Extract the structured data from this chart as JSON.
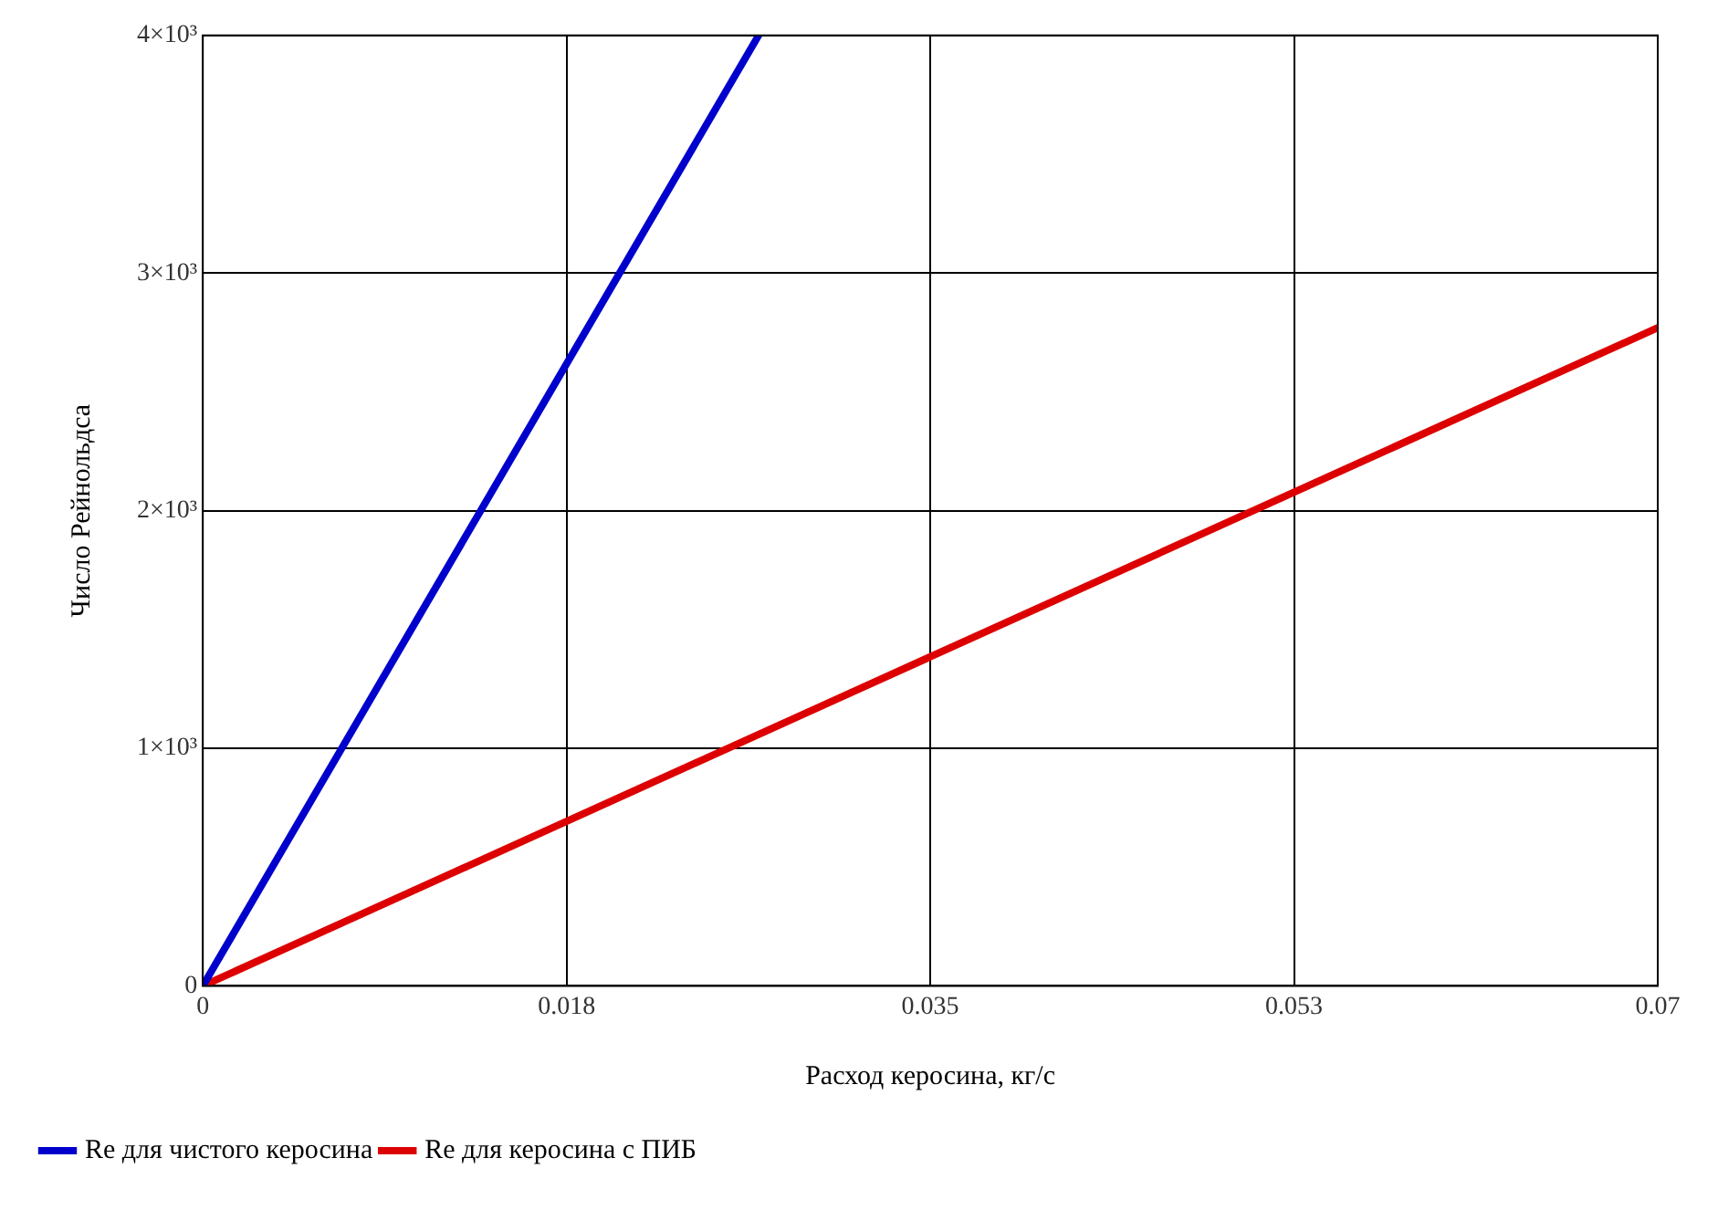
{
  "chart_data": {
    "type": "line",
    "xlabel": "Расход керосина, кг/с",
    "ylabel": "Число Рейнольдса",
    "series": [
      {
        "name": "Re для чистого керосина",
        "color": "#0000cc",
        "x": [
          0,
          0.02674
        ],
        "values": [
          0,
          4000
        ]
      },
      {
        "name": "Re для керосина с ПИБ",
        "color": "#dd0000",
        "x": [
          0,
          0.07
        ],
        "values": [
          0,
          2770
        ]
      }
    ],
    "xlim": [
      0,
      0.07
    ],
    "xticks": [
      0,
      {
        "value": 0.0175,
        "label": "0.018"
      },
      0.035,
      {
        "value": 0.0525,
        "label": "0.053"
      },
      0.07
    ],
    "ylim": [
      0,
      4000
    ],
    "yticks": [
      0,
      {
        "value": 1000,
        "label": "1×10³"
      },
      {
        "value": 2000,
        "label": "2×10³"
      },
      {
        "value": 3000,
        "label": "3×10³"
      },
      {
        "value": 4000,
        "label": "4×10³"
      }
    ],
    "grid": true,
    "legend": "bottom left",
    "marker": "none",
    "line_style": "solid"
  }
}
